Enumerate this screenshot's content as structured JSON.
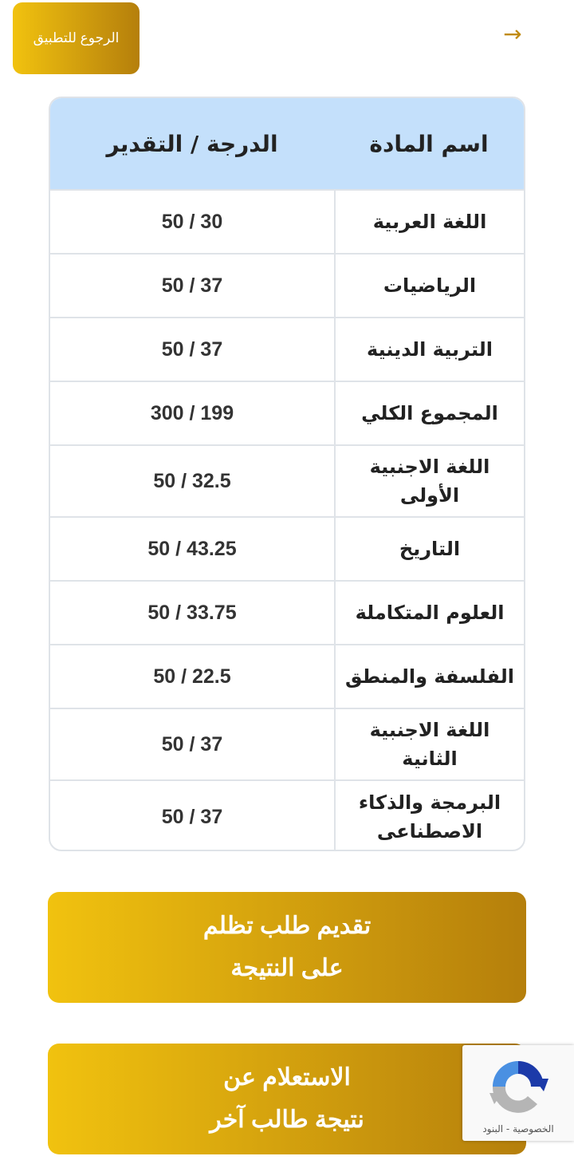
{
  "header": {
    "back_label": "الرجوع للتطبيق",
    "arrow_icon": "arrow-right-icon"
  },
  "table": {
    "headers": [
      "اسم المادة",
      "الدرجة / التقدير"
    ],
    "rows": [
      {
        "subject": "اللغة العربية",
        "grade": "50 / 30"
      },
      {
        "subject": "الرياضيات",
        "grade": "50 / 37"
      },
      {
        "subject": "التربية الدينية",
        "grade": "50 / 37"
      },
      {
        "subject": "المجموع الكلي",
        "grade": "300 / 199"
      },
      {
        "subject": "اللغة الاجنبية الأولى",
        "grade": "50 / 32.5"
      },
      {
        "subject": "التاريخ",
        "grade": "50 / 43.25"
      },
      {
        "subject": "العلوم المتكاملة",
        "grade": "50 / 33.75"
      },
      {
        "subject": "الفلسفة والمنطق",
        "grade": "50 / 22.5"
      },
      {
        "subject": "اللغة الاجنبية الثانية",
        "grade": "50 / 37"
      },
      {
        "subject": "البرمجة والذكاء الاصطناعى",
        "grade": "50 / 37"
      }
    ]
  },
  "actions": {
    "appeal_line1": "تقديم طلب تظلم",
    "appeal_line2": "على النتيجة",
    "inquiry_line1": "الاستعلام عن",
    "inquiry_line2": "نتيجة طالب آخر"
  },
  "recaptcha": {
    "links": "الخصوصية - البنود"
  },
  "colors": {
    "gold_start": "#f1c20f",
    "gold_end": "#b57f0c",
    "header_bg": "#c4e0fb"
  }
}
